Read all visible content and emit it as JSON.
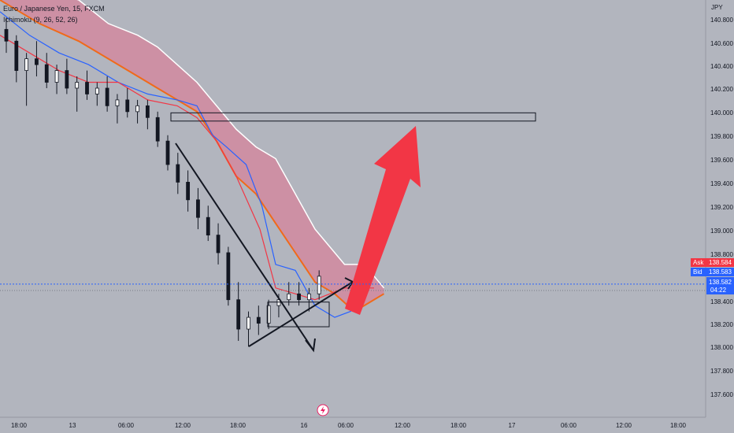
{
  "header": {
    "symbol_line": "Euro / Japanese Yen, 15, FXCM",
    "indicator_line": "Ichimoku (9, 26, 52, 26)"
  },
  "currency_label": "JPY",
  "price_badges": {
    "ask_label": "Ask",
    "ask_value": "138.584",
    "bid_label": "Bid",
    "bid_value": "138.583",
    "last_value": "138.582",
    "countdown": "04:22"
  },
  "colors": {
    "background": "#b2b5be",
    "cloud_fill": "#d18aa0",
    "cloud_upper": "#ffffff",
    "cloud_lower": "#f06a1a",
    "conversion": "#f23645",
    "base": "#2962ff",
    "candle": "#131722",
    "arrow": "#f23645",
    "ask": "#f23645",
    "bid": "#2962ff",
    "last": "#2962ff"
  },
  "chart_data": {
    "type": "candlestick",
    "y_axis": {
      "range": [
        137.45,
        141.0
      ],
      "ticks": [
        "140.800",
        "140.600",
        "140.400",
        "140.200",
        "140.000",
        "139.800",
        "139.600",
        "139.400",
        "139.200",
        "139.000",
        "138.800",
        "138.400",
        "138.200",
        "138.000",
        "137.800",
        "137.600"
      ]
    },
    "x_axis": {
      "ticks": [
        "18:00",
        "13",
        "06:00",
        "12:00",
        "18:00",
        "16",
        "06:00",
        "12:00",
        "18:00",
        "17",
        "06:00",
        "12:00",
        "18:00"
      ]
    },
    "ichimoku": {
      "conversion_line": [
        [
          0,
          140.7
        ],
        [
          15,
          140.55
        ],
        [
          30,
          140.4
        ],
        [
          45,
          140.3
        ],
        [
          60,
          140.3
        ],
        [
          75,
          140.15
        ],
        [
          90,
          140.1
        ],
        [
          100,
          140.0
        ],
        [
          110,
          139.8
        ],
        [
          120,
          139.5
        ],
        [
          132,
          139.05
        ],
        [
          140,
          138.55
        ],
        [
          150,
          138.5
        ],
        [
          160,
          138.45
        ],
        [
          175,
          138.55
        ],
        [
          190,
          138.55
        ]
      ],
      "base_line": [
        [
          0,
          140.9
        ],
        [
          15,
          140.7
        ],
        [
          30,
          140.55
        ],
        [
          45,
          140.45
        ],
        [
          60,
          140.3
        ],
        [
          75,
          140.2
        ],
        [
          90,
          140.15
        ],
        [
          100,
          140.1
        ],
        [
          108,
          139.85
        ],
        [
          115,
          139.75
        ],
        [
          125,
          139.6
        ],
        [
          133,
          139.25
        ],
        [
          140,
          138.75
        ],
        [
          150,
          138.7
        ],
        [
          160,
          138.4
        ],
        [
          170,
          138.3
        ],
        [
          178,
          138.35
        ],
        [
          185,
          138.45
        ]
      ],
      "leading_span_upper": [
        [
          0,
          141.2
        ],
        [
          20,
          141.1
        ],
        [
          40,
          141.0
        ],
        [
          55,
          140.8
        ],
        [
          70,
          140.7
        ],
        [
          80,
          140.6
        ],
        [
          90,
          140.45
        ],
        [
          100,
          140.3
        ],
        [
          110,
          140.1
        ],
        [
          120,
          139.9
        ],
        [
          130,
          139.75
        ],
        [
          140,
          139.65
        ],
        [
          150,
          139.35
        ],
        [
          160,
          139.05
        ],
        [
          175,
          138.75
        ],
        [
          185,
          138.75
        ],
        [
          195,
          138.55
        ]
      ],
      "leading_span_lower": [
        [
          0,
          141.0
        ],
        [
          20,
          140.8
        ],
        [
          40,
          140.65
        ],
        [
          55,
          140.5
        ],
        [
          70,
          140.35
        ],
        [
          80,
          140.25
        ],
        [
          90,
          140.15
        ],
        [
          100,
          140.05
        ],
        [
          110,
          139.8
        ],
        [
          120,
          139.5
        ],
        [
          130,
          139.35
        ],
        [
          140,
          139.1
        ],
        [
          150,
          138.85
        ],
        [
          160,
          138.6
        ],
        [
          170,
          138.5
        ],
        [
          180,
          138.35
        ],
        [
          195,
          138.5
        ]
      ]
    },
    "candles": [
      [
        140.75,
        140.85,
        140.55,
        140.65
      ],
      [
        140.65,
        140.7,
        140.3,
        140.4
      ],
      [
        140.4,
        140.55,
        140.1,
        140.5
      ],
      [
        140.5,
        140.65,
        140.35,
        140.45
      ],
      [
        140.45,
        140.55,
        140.25,
        140.3
      ],
      [
        140.3,
        140.45,
        140.2,
        140.4
      ],
      [
        140.4,
        140.5,
        140.2,
        140.25
      ],
      [
        140.25,
        140.35,
        140.05,
        140.3
      ],
      [
        140.3,
        140.4,
        140.15,
        140.2
      ],
      [
        140.2,
        140.3,
        140.1,
        140.25
      ],
      [
        140.25,
        140.35,
        140.05,
        140.1
      ],
      [
        140.1,
        140.2,
        139.95,
        140.15
      ],
      [
        140.15,
        140.25,
        140.0,
        140.05
      ],
      [
        140.05,
        140.15,
        139.95,
        140.1
      ],
      [
        140.1,
        140.15,
        139.9,
        140.0
      ],
      [
        140.0,
        140.05,
        139.75,
        139.8
      ],
      [
        139.8,
        139.85,
        139.55,
        139.6
      ],
      [
        139.6,
        139.7,
        139.35,
        139.45
      ],
      [
        139.45,
        139.55,
        139.2,
        139.3
      ],
      [
        139.3,
        139.4,
        139.05,
        139.15
      ],
      [
        139.15,
        139.25,
        138.95,
        139.0
      ],
      [
        139.0,
        139.1,
        138.75,
        138.85
      ],
      [
        138.85,
        138.9,
        138.4,
        138.45
      ],
      [
        138.45,
        138.6,
        138.1,
        138.2
      ],
      [
        138.2,
        138.35,
        138.05,
        138.3
      ],
      [
        138.3,
        138.4,
        138.15,
        138.25
      ],
      [
        138.25,
        138.45,
        138.2,
        138.4
      ],
      [
        138.4,
        138.5,
        138.3,
        138.45
      ],
      [
        138.45,
        138.6,
        138.4,
        138.5
      ],
      [
        138.5,
        138.6,
        138.4,
        138.45
      ],
      [
        138.45,
        138.55,
        138.35,
        138.5
      ],
      [
        138.5,
        138.7,
        138.45,
        138.65
      ]
    ],
    "current_price": 138.583,
    "drawings": {
      "resistance_zone": {
        "price_top": 140.04,
        "price_bottom": 139.97
      },
      "consolidation_box": {
        "price_top": 138.43,
        "price_bottom": 138.22
      },
      "projection": "up"
    }
  }
}
